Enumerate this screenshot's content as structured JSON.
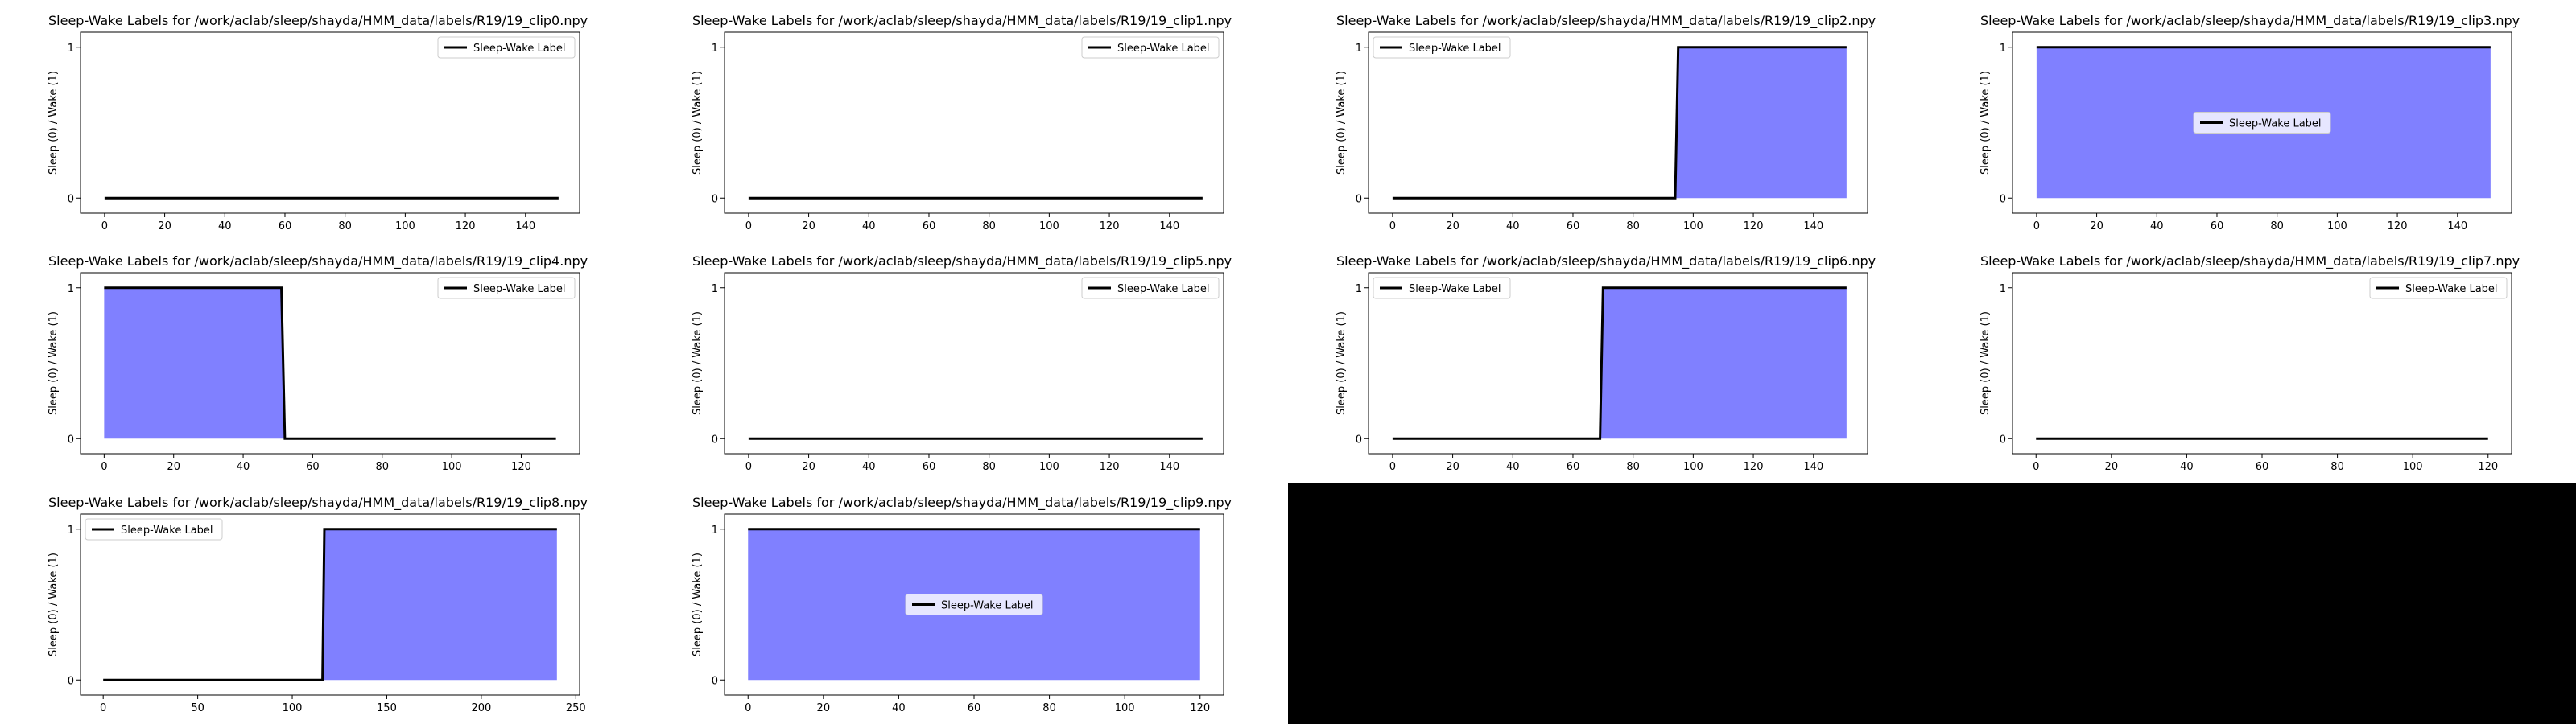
{
  "figure": {
    "blank_area_color": "#000000",
    "fill_color": "#8080ff",
    "line_color": "#000000"
  },
  "chart_data": [
    {
      "type": "line",
      "title": "Sleep-Wake Labels for /work/aclab/sleep/shayda/HMM_data/labels/R19/19_clip0.npy",
      "ylabel": "Sleep (0) / Wake (1)",
      "xlabel": "",
      "legend": "Sleep-Wake Label",
      "legend_loc": "upper right",
      "xlim": [
        -8,
        158
      ],
      "ylim": [
        -0.1,
        1.1
      ],
      "xticks": [
        0,
        20,
        40,
        60,
        80,
        100,
        120,
        140
      ],
      "yticks": [
        0,
        1
      ],
      "x": [
        0,
        151
      ],
      "y": [
        0,
        0
      ]
    },
    {
      "type": "line",
      "title": "Sleep-Wake Labels for /work/aclab/sleep/shayda/HMM_data/labels/R19/19_clip1.npy",
      "ylabel": "Sleep (0) / Wake (1)",
      "xlabel": "",
      "legend": "Sleep-Wake Label",
      "legend_loc": "upper right",
      "xlim": [
        -8,
        158
      ],
      "ylim": [
        -0.1,
        1.1
      ],
      "xticks": [
        0,
        20,
        40,
        60,
        80,
        100,
        120,
        140
      ],
      "yticks": [
        0,
        1
      ],
      "x": [
        0,
        151
      ],
      "y": [
        0,
        0
      ]
    },
    {
      "type": "line",
      "title": "Sleep-Wake Labels for /work/aclab/sleep/shayda/HMM_data/labels/R19/19_clip2.npy",
      "ylabel": "Sleep (0) / Wake (1)",
      "xlabel": "",
      "legend": "Sleep-Wake Label",
      "legend_loc": "upper left",
      "xlim": [
        -8,
        158
      ],
      "ylim": [
        -0.1,
        1.1
      ],
      "xticks": [
        0,
        20,
        40,
        60,
        80,
        100,
        120,
        140
      ],
      "yticks": [
        0,
        1
      ],
      "x": [
        0,
        94,
        95,
        151
      ],
      "y": [
        0,
        0,
        1,
        1
      ]
    },
    {
      "type": "line",
      "title": "Sleep-Wake Labels for /work/aclab/sleep/shayda/HMM_data/labels/R19/19_clip3.npy",
      "ylabel": "Sleep (0) / Wake (1)",
      "xlabel": "",
      "legend": "Sleep-Wake Label",
      "legend_loc": "center",
      "xlim": [
        -8,
        158
      ],
      "ylim": [
        -0.1,
        1.1
      ],
      "xticks": [
        0,
        20,
        40,
        60,
        80,
        100,
        120,
        140
      ],
      "yticks": [
        0,
        1
      ],
      "x": [
        0,
        151
      ],
      "y": [
        1,
        1
      ]
    },
    {
      "type": "line",
      "title": "Sleep-Wake Labels for /work/aclab/sleep/shayda/HMM_data/labels/R19/19_clip4.npy",
      "ylabel": "Sleep (0) / Wake (1)",
      "xlabel": "",
      "legend": "Sleep-Wake Label",
      "legend_loc": "upper right",
      "xlim": [
        -6.8,
        136.8
      ],
      "ylim": [
        -0.1,
        1.1
      ],
      "xticks": [
        0,
        20,
        40,
        60,
        80,
        100,
        120
      ],
      "yticks": [
        0,
        1
      ],
      "x": [
        0,
        51,
        52,
        130
      ],
      "y": [
        1,
        1,
        0,
        0
      ]
    },
    {
      "type": "line",
      "title": "Sleep-Wake Labels for /work/aclab/sleep/shayda/HMM_data/labels/R19/19_clip5.npy",
      "ylabel": "Sleep (0) / Wake (1)",
      "xlabel": "",
      "legend": "Sleep-Wake Label",
      "legend_loc": "upper right",
      "xlim": [
        -8,
        158
      ],
      "ylim": [
        -0.1,
        1.1
      ],
      "xticks": [
        0,
        20,
        40,
        60,
        80,
        100,
        120,
        140
      ],
      "yticks": [
        0,
        1
      ],
      "x": [
        0,
        151
      ],
      "y": [
        0,
        0
      ]
    },
    {
      "type": "line",
      "title": "Sleep-Wake Labels for /work/aclab/sleep/shayda/HMM_data/labels/R19/19_clip6.npy",
      "ylabel": "Sleep (0) / Wake (1)",
      "xlabel": "",
      "legend": "Sleep-Wake Label",
      "legend_loc": "upper left",
      "xlim": [
        -8,
        158
      ],
      "ylim": [
        -0.1,
        1.1
      ],
      "xticks": [
        0,
        20,
        40,
        60,
        80,
        100,
        120,
        140
      ],
      "yticks": [
        0,
        1
      ],
      "x": [
        0,
        69,
        70,
        151
      ],
      "y": [
        0,
        0,
        1,
        1
      ]
    },
    {
      "type": "line",
      "title": "Sleep-Wake Labels for /work/aclab/sleep/shayda/HMM_data/labels/R19/19_clip7.npy",
      "ylabel": "Sleep (0) / Wake (1)",
      "xlabel": "",
      "legend": "Sleep-Wake Label",
      "legend_loc": "upper right",
      "xlim": [
        -6.25,
        126.25
      ],
      "ylim": [
        -0.1,
        1.1
      ],
      "xticks": [
        0,
        20,
        40,
        60,
        80,
        100,
        120
      ],
      "yticks": [
        0,
        1
      ],
      "x": [
        0,
        120
      ],
      "y": [
        0,
        0
      ]
    },
    {
      "type": "line",
      "title": "Sleep-Wake Labels for /work/aclab/sleep/shayda/HMM_data/labels/R19/19_clip8.npy",
      "ylabel": "Sleep (0) / Wake (1)",
      "xlabel": "",
      "legend": "Sleep-Wake Label",
      "legend_loc": "upper left",
      "xlim": [
        -12,
        252
      ],
      "ylim": [
        -0.1,
        1.1
      ],
      "xticks": [
        0,
        50,
        100,
        150,
        200,
        250
      ],
      "yticks": [
        0,
        1
      ],
      "x": [
        0,
        116,
        117,
        240
      ],
      "y": [
        0,
        0,
        1,
        1
      ]
    },
    {
      "type": "line",
      "title": "Sleep-Wake Labels for /work/aclab/sleep/shayda/HMM_data/labels/R19/19_clip9.npy",
      "ylabel": "Sleep (0) / Wake (1)",
      "xlabel": "",
      "legend": "Sleep-Wake Label",
      "legend_loc": "center",
      "xlim": [
        -6.25,
        126.25
      ],
      "ylim": [
        -0.1,
        1.1
      ],
      "xticks": [
        0,
        20,
        40,
        60,
        80,
        100,
        120
      ],
      "yticks": [
        0,
        1
      ],
      "x": [
        0,
        120
      ],
      "y": [
        1,
        1
      ]
    }
  ]
}
